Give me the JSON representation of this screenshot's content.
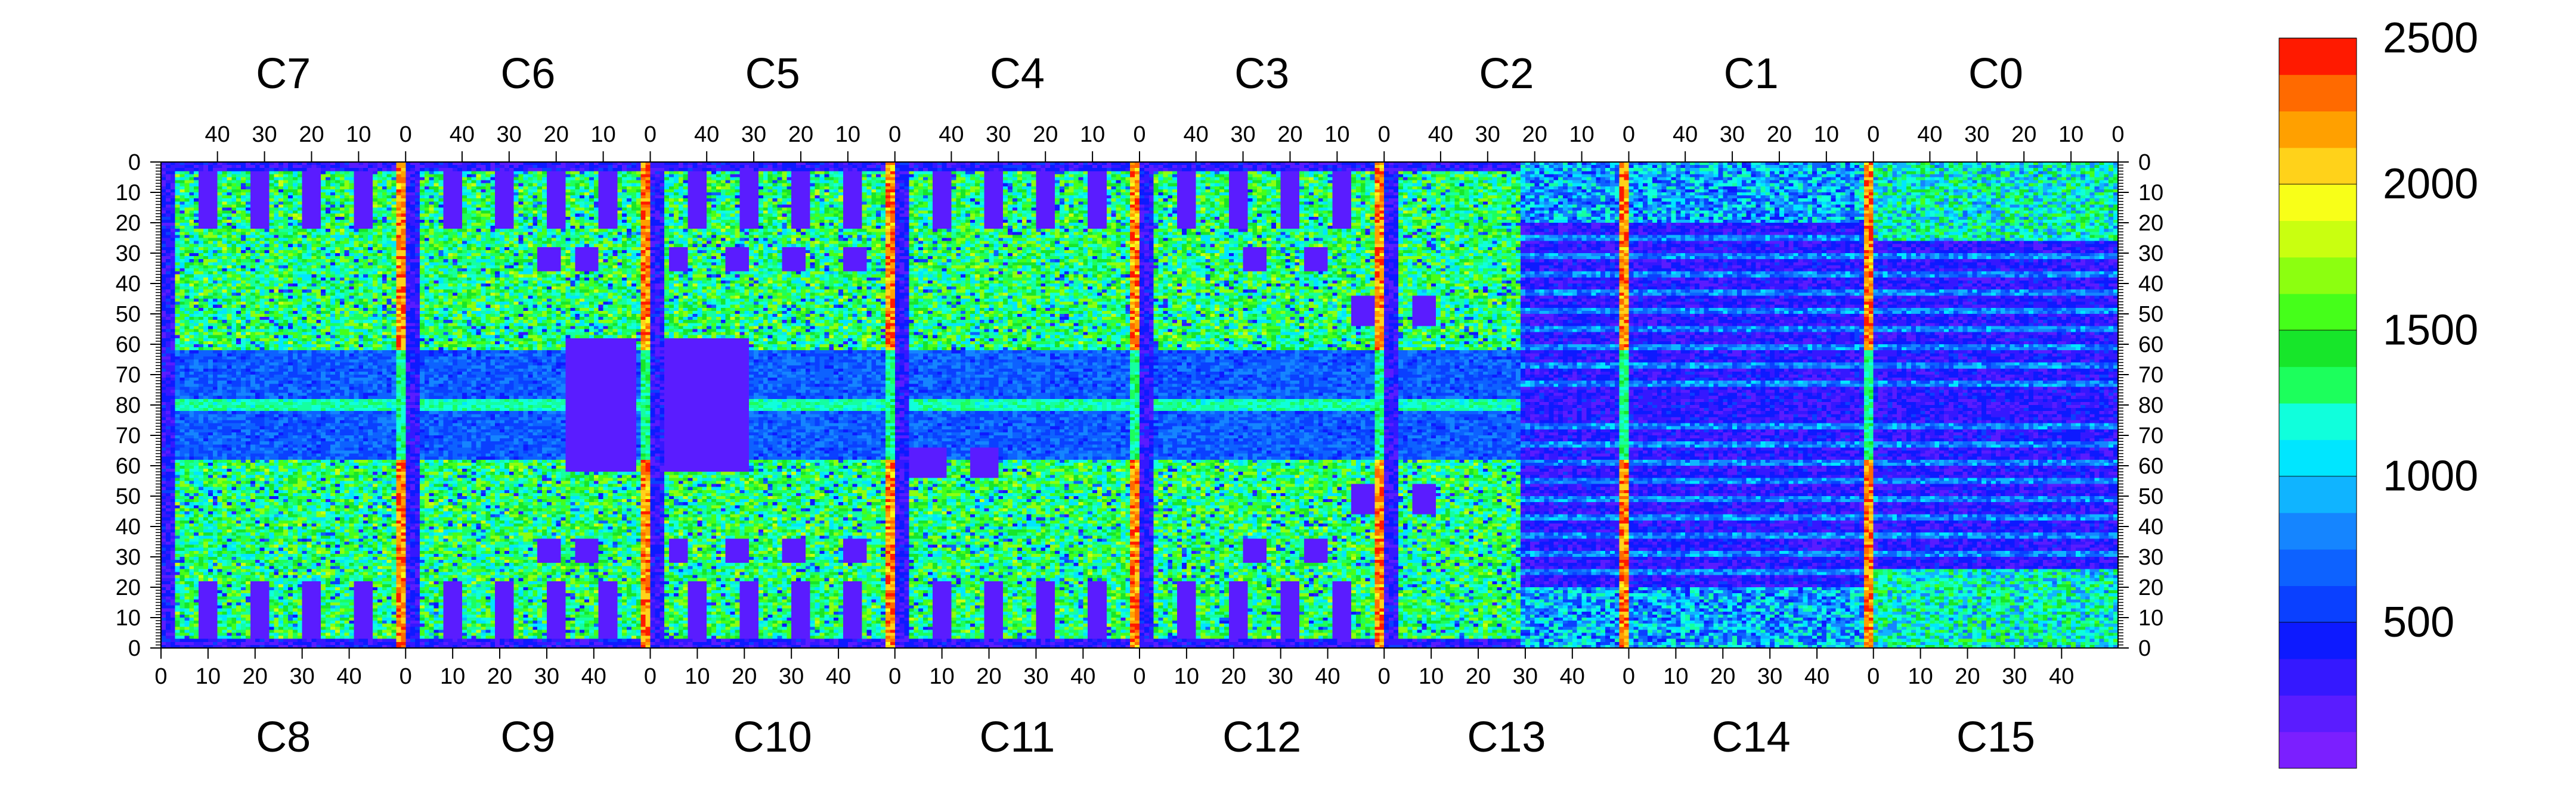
{
  "chart_data": {
    "type": "heatmap",
    "title": "",
    "top_chips": [
      "C7",
      "C6",
      "C5",
      "C4",
      "C3",
      "C2",
      "C1",
      "C0"
    ],
    "bottom_chips": [
      "C8",
      "C9",
      "C10",
      "C11",
      "C12",
      "C13",
      "C14",
      "C15"
    ],
    "top_x_tick_labels": [
      "40",
      "30",
      "20",
      "10",
      "0"
    ],
    "bottom_x_tick_labels": [
      "0",
      "10",
      "20",
      "30",
      "40"
    ],
    "y_tick_labels": [
      "0",
      "10",
      "20",
      "30",
      "40",
      "50",
      "60",
      "70",
      "80",
      "70",
      "60",
      "50",
      "40",
      "30",
      "20",
      "10",
      "0"
    ],
    "columns_per_chip": 52,
    "rows_per_half": 80,
    "z_range": [
      0,
      2500
    ],
    "colorbar_tick_labels": [
      "2500",
      "2000",
      "1500",
      "1000",
      "500"
    ],
    "colorbar_tick_values": [
      2500,
      2000,
      1500,
      1000,
      500
    ],
    "colorbar_levels": 20,
    "palette": [
      "#7b1fff",
      "#5a1cff",
      "#3518ff",
      "#0d1aff",
      "#0a40ff",
      "#0d62ff",
      "#1585ff",
      "#10b4ff",
      "#00e6ff",
      "#10ffdc",
      "#15ffa0",
      "#1cff5c",
      "#17e62a",
      "#45ff1a",
      "#8cff10",
      "#c9ff10",
      "#f8ff18",
      "#ffd21a",
      "#ffa000",
      "#ff6a00",
      "#ff1a00"
    ],
    "legend_position": "right",
    "grid": false
  }
}
